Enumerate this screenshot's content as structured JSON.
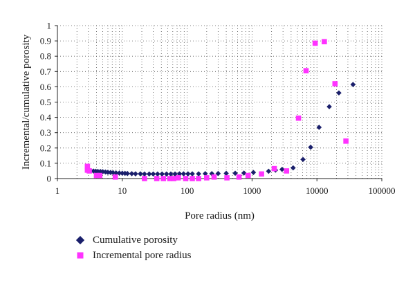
{
  "chart_data": {
    "type": "scatter",
    "xlabel": "Pore radius (nm)",
    "ylabel": "Incremental/cumulative porosity",
    "x_scale": "log",
    "xlim": [
      1,
      100000
    ],
    "ylim": [
      0,
      1
    ],
    "x_ticks": [
      "1",
      "10",
      "100",
      "1000",
      "10000",
      "100000"
    ],
    "y_ticks": [
      "0",
      "0.1",
      "0.2",
      "0.3",
      "0.4",
      "0.5",
      "0.6",
      "0.7",
      "0.8",
      "0.9",
      "1"
    ],
    "grid": "dotted",
    "legend_position": "bottom",
    "series": [
      {
        "name": "Cumulative porosity",
        "marker": "diamond",
        "color": "#1a1f6b",
        "points": [
          [
            3.0,
            0.05
          ],
          [
            3.3,
            0.05
          ],
          [
            3.6,
            0.049
          ],
          [
            3.9,
            0.048
          ],
          [
            4.2,
            0.047
          ],
          [
            4.6,
            0.046
          ],
          [
            5.0,
            0.045
          ],
          [
            5.5,
            0.043
          ],
          [
            6.0,
            0.041
          ],
          [
            6.6,
            0.04
          ],
          [
            7.2,
            0.039
          ],
          [
            8.0,
            0.037
          ],
          [
            9.0,
            0.036
          ],
          [
            10,
            0.035
          ],
          [
            11,
            0.034
          ],
          [
            12,
            0.033
          ],
          [
            14,
            0.032
          ],
          [
            16,
            0.031
          ],
          [
            19,
            0.031
          ],
          [
            22,
            0.03
          ],
          [
            26,
            0.03
          ],
          [
            30,
            0.03
          ],
          [
            35,
            0.03
          ],
          [
            41,
            0.03
          ],
          [
            48,
            0.03
          ],
          [
            56,
            0.03
          ],
          [
            65,
            0.03
          ],
          [
            76,
            0.031
          ],
          [
            88,
            0.031
          ],
          [
            103,
            0.031
          ],
          [
            120,
            0.031
          ],
          [
            150,
            0.031
          ],
          [
            190,
            0.032
          ],
          [
            240,
            0.032
          ],
          [
            300,
            0.033
          ],
          [
            400,
            0.034
          ],
          [
            550,
            0.035
          ],
          [
            750,
            0.036
          ],
          [
            1050,
            0.04
          ],
          [
            1800,
            0.048
          ],
          [
            2300,
            0.055
          ],
          [
            2900,
            0.06
          ],
          [
            4300,
            0.07
          ],
          [
            6100,
            0.125
          ],
          [
            8000,
            0.205
          ],
          [
            10800,
            0.335
          ],
          [
            15500,
            0.47
          ],
          [
            21800,
            0.56
          ],
          [
            36000,
            0.615
          ]
        ]
      },
      {
        "name": "Incremental pore radius",
        "marker": "square",
        "color": "#ff33ff",
        "points": [
          [
            2.9,
            0.08
          ],
          [
            2.9,
            0.055
          ],
          [
            3.1,
            0.05
          ],
          [
            4.0,
            0.02
          ],
          [
            4.5,
            0.02
          ],
          [
            7.8,
            0.01
          ],
          [
            22,
            0.0
          ],
          [
            34,
            0.0
          ],
          [
            43,
            0.0
          ],
          [
            54,
            0.0
          ],
          [
            62,
            0.0
          ],
          [
            73,
            0.005
          ],
          [
            95,
            0.0
          ],
          [
            120,
            0.0
          ],
          [
            150,
            0.0
          ],
          [
            200,
            0.005
          ],
          [
            260,
            0.01
          ],
          [
            410,
            0.005
          ],
          [
            630,
            0.01
          ],
          [
            870,
            0.02
          ],
          [
            1400,
            0.03
          ],
          [
            2200,
            0.065
          ],
          [
            3400,
            0.05
          ],
          [
            5200,
            0.395
          ],
          [
            6800,
            0.705
          ],
          [
            9400,
            0.885
          ],
          [
            13000,
            0.895
          ],
          [
            19000,
            0.62
          ],
          [
            28000,
            0.245
          ]
        ]
      }
    ]
  }
}
